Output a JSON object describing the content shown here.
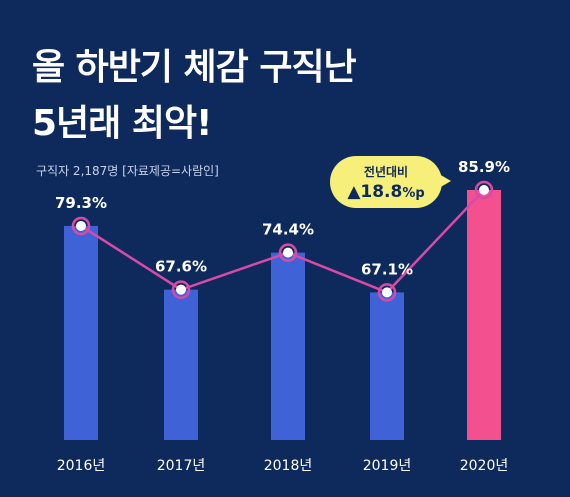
{
  "title": {
    "line1": "올 하반기 체감 구직난",
    "line2": "5년래 최악!"
  },
  "source_note": "구직자 2,187명 [자료제공=사람인]",
  "callout": {
    "label": "전년대비",
    "value": "▲18.8",
    "unit": "%p"
  },
  "colors": {
    "background": "#0e2a5c",
    "bar": "#3f63d6",
    "highlight_bar": "#f2508f",
    "line": "#d94aa8",
    "callout_bg": "#f6ef7a"
  },
  "chart_data": {
    "type": "bar",
    "categories": [
      "2016년",
      "2017년",
      "2018년",
      "2019년",
      "2020년"
    ],
    "values": [
      79.3,
      67.6,
      74.4,
      67.1,
      85.9
    ],
    "value_labels": [
      "79.3%",
      "67.6%",
      "74.4%",
      "67.1%",
      "85.9%"
    ],
    "highlight_index": 4,
    "line_overlay": true,
    "grid": false,
    "legend": "none"
  }
}
